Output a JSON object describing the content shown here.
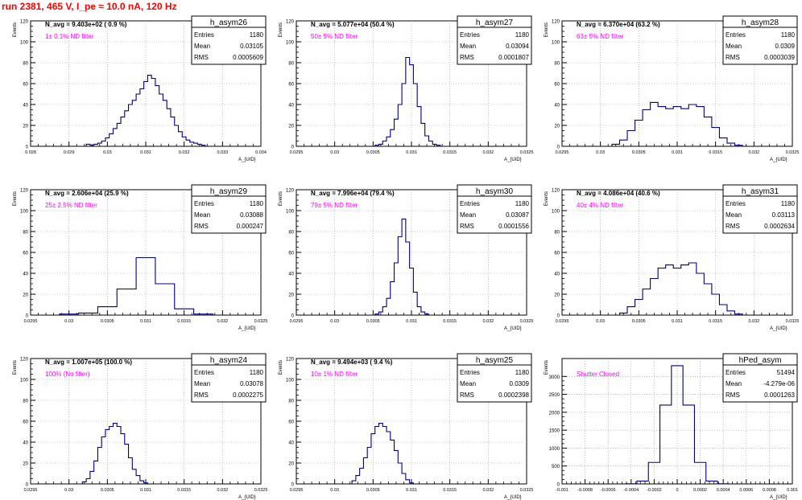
{
  "run_title": "run 2381,   465 V, I_pe ≈ 10.0 nA, 120 Hz",
  "stat_labels": {
    "entries": "Entries",
    "mean": "Mean",
    "rms": "RMS"
  },
  "colors": {
    "title": "#ff0000",
    "filter": "#ff00ff",
    "histogram": "#000080",
    "frame": "#000000",
    "grid": "#999999"
  },
  "chart_data": [
    {
      "type": "histogram",
      "name": "h_asym26",
      "ylabel": "Events",
      "xlabel": "A_{UID}",
      "xlim": [
        0.028,
        0.034
      ],
      "ylim": [
        0,
        120
      ],
      "yticks": [
        0,
        20,
        40,
        60,
        80,
        100,
        120
      ],
      "xticks": [
        0.028,
        0.029,
        0.03,
        0.031,
        0.032,
        0.033,
        0.034
      ],
      "xtick_labels": [
        "0.028",
        "0.029",
        "0.03",
        "0.031",
        "0.032",
        "0.033",
        "0.034"
      ],
      "stats": {
        "entries": "1180",
        "mean": "0.03105",
        "rms": "0.0005609"
      },
      "navg": "N_avg = 9.403e+02 ( 0.9 %)",
      "filter": "1± 0.1% ND filter",
      "grid": true,
      "bins": [
        [
          0.0295,
          2
        ],
        [
          0.0296,
          1
        ],
        [
          0.0297,
          2
        ],
        [
          0.0298,
          3
        ],
        [
          0.0299,
          5
        ],
        [
          0.03,
          8
        ],
        [
          0.0301,
          12
        ],
        [
          0.0302,
          17
        ],
        [
          0.0303,
          22
        ],
        [
          0.0304,
          28
        ],
        [
          0.0305,
          34
        ],
        [
          0.0306,
          40
        ],
        [
          0.0307,
          44
        ],
        [
          0.0308,
          50
        ],
        [
          0.0309,
          55
        ],
        [
          0.031,
          62
        ],
        [
          0.0311,
          68
        ],
        [
          0.0312,
          65
        ],
        [
          0.0313,
          58
        ],
        [
          0.0314,
          50
        ],
        [
          0.0315,
          44
        ],
        [
          0.0316,
          36
        ],
        [
          0.0317,
          28
        ],
        [
          0.0318,
          20
        ],
        [
          0.0319,
          14
        ],
        [
          0.032,
          9
        ],
        [
          0.0321,
          6
        ],
        [
          0.0322,
          4
        ],
        [
          0.0323,
          3
        ],
        [
          0.0324,
          2
        ],
        [
          0.0325,
          1
        ]
      ]
    },
    {
      "type": "histogram",
      "name": "h_asym27",
      "ylabel": "Events",
      "xlabel": "A_{UID}",
      "xlim": [
        0.0295,
        0.0325
      ],
      "ylim": [
        0,
        120
      ],
      "yticks": [
        0,
        20,
        40,
        60,
        80,
        100,
        120
      ],
      "xticks": [
        0.0295,
        0.03,
        0.0305,
        0.031,
        0.0315,
        0.032,
        0.0325
      ],
      "xtick_labels": [
        "0.0295",
        "0.03",
        "0.0305",
        "0.031",
        "0.0315",
        "0.032",
        "0.0325"
      ],
      "stats": {
        "entries": "1180",
        "mean": "0.03094",
        "rms": "0.0001807"
      },
      "navg": "N_avg = 5.077e+04 (50.4 %)",
      "filter": "50± 5% ND filter",
      "grid": true,
      "bins": [
        [
          0.03055,
          1
        ],
        [
          0.0306,
          2
        ],
        [
          0.03065,
          5
        ],
        [
          0.0307,
          9
        ],
        [
          0.03075,
          16
        ],
        [
          0.0308,
          26
        ],
        [
          0.03085,
          40
        ],
        [
          0.0309,
          60
        ],
        [
          0.03095,
          85
        ],
        [
          0.031,
          78
        ],
        [
          0.03105,
          60
        ],
        [
          0.0311,
          38
        ],
        [
          0.03115,
          22
        ],
        [
          0.0312,
          10
        ],
        [
          0.03125,
          5
        ],
        [
          0.0313,
          2
        ],
        [
          0.03135,
          1
        ]
      ]
    },
    {
      "type": "histogram",
      "name": "h_asym28",
      "ylabel": "Events",
      "xlabel": "A_{UID}",
      "xlim": [
        0.0295,
        0.0325
      ],
      "ylim": [
        0,
        120
      ],
      "yticks": [
        0,
        20,
        40,
        60,
        80,
        100,
        120
      ],
      "xticks": [
        0.0295,
        0.03,
        0.0305,
        0.031,
        0.0315,
        0.032,
        0.0325
      ],
      "xtick_labels": [
        "0.0295",
        "0.03",
        "0.0305",
        "0.031",
        "0.0315",
        "0.032",
        "0.0325"
      ],
      "stats": {
        "entries": "1180",
        "mean": "0.0309",
        "rms": "0.0003039"
      },
      "navg": "N_avg = 6.370e+04 (63.2 %)",
      "filter": "63± 5% ND filter",
      "grid": true,
      "bins": [
        [
          0.0302,
          2
        ],
        [
          0.0303,
          6
        ],
        [
          0.0304,
          15
        ],
        [
          0.0305,
          25
        ],
        [
          0.0306,
          35
        ],
        [
          0.0307,
          42
        ],
        [
          0.0308,
          38
        ],
        [
          0.0309,
          36
        ],
        [
          0.031,
          38
        ],
        [
          0.0311,
          36
        ],
        [
          0.0312,
          40
        ],
        [
          0.0313,
          38
        ],
        [
          0.0314,
          28
        ],
        [
          0.0315,
          18
        ],
        [
          0.0316,
          8
        ],
        [
          0.0317,
          3
        ],
        [
          0.0318,
          1
        ]
      ]
    },
    {
      "type": "histogram",
      "name": "h_asym29",
      "ylabel": "Events",
      "xlabel": "A_{UID}",
      "xlim": [
        0.0295,
        0.0325
      ],
      "ylim": [
        0,
        120
      ],
      "yticks": [
        0,
        20,
        40,
        60,
        80,
        100,
        120
      ],
      "xticks": [
        0.0295,
        0.03,
        0.0305,
        0.031,
        0.0315,
        0.032,
        0.0325
      ],
      "xtick_labels": [
        "0.0295",
        "0.03",
        "0.0305",
        "0.031",
        "0.0315",
        "0.032",
        "0.0325"
      ],
      "stats": {
        "entries": "1180",
        "mean": "0.03088",
        "rms": "0.000247"
      },
      "navg": "N_avg = 2.606e+04 (25.9 %)",
      "filter": "25± 2.5% ND filter",
      "grid": true,
      "bins": [
        [
          0.03,
          1
        ],
        [
          0.03025,
          2
        ],
        [
          0.0305,
          8
        ],
        [
          0.03075,
          25
        ],
        [
          0.031,
          55
        ],
        [
          0.03125,
          30
        ],
        [
          0.0315,
          6
        ],
        [
          0.03175,
          1
        ]
      ]
    },
    {
      "type": "histogram",
      "name": "h_asym30",
      "ylabel": "Events",
      "xlabel": "A_{UID}",
      "xlim": [
        0.0295,
        0.0325
      ],
      "ylim": [
        0,
        120
      ],
      "yticks": [
        0,
        20,
        40,
        60,
        80,
        100,
        120
      ],
      "xticks": [
        0.0295,
        0.03,
        0.0305,
        0.031,
        0.0315,
        0.032,
        0.0325
      ],
      "xtick_labels": [
        "0.0295",
        "0.03",
        "0.0305",
        "0.031",
        "0.0315",
        "0.032",
        "0.0325"
      ],
      "stats": {
        "entries": "1180",
        "mean": "0.03087",
        "rms": "0.0001556"
      },
      "navg": "N_avg = 7.996e+04 (79.4 %)",
      "filter": "79± 5% ND filter",
      "grid": true,
      "bins": [
        [
          0.03055,
          1
        ],
        [
          0.0306,
          3
        ],
        [
          0.03065,
          8
        ],
        [
          0.0307,
          16
        ],
        [
          0.03075,
          32
        ],
        [
          0.0308,
          50
        ],
        [
          0.03085,
          75
        ],
        [
          0.0309,
          92
        ],
        [
          0.03095,
          70
        ],
        [
          0.031,
          45
        ],
        [
          0.03105,
          22
        ],
        [
          0.0311,
          8
        ],
        [
          0.03115,
          3
        ],
        [
          0.0312,
          1
        ]
      ]
    },
    {
      "type": "histogram",
      "name": "h_asym31",
      "ylabel": "Events",
      "xlabel": "A_{UID}",
      "xlim": [
        0.0295,
        0.0325
      ],
      "ylim": [
        0,
        120
      ],
      "yticks": [
        0,
        20,
        40,
        60,
        80,
        100,
        120
      ],
      "xticks": [
        0.0295,
        0.03,
        0.0305,
        0.031,
        0.0315,
        0.032,
        0.0325
      ],
      "xtick_labels": [
        "0.0295",
        "0.03",
        "0.0305",
        "0.031",
        "0.0315",
        "0.032",
        "0.0325"
      ],
      "stats": {
        "entries": "1180",
        "mean": "0.03113",
        "rms": "0.0002634"
      },
      "navg": "N_avg = 4.086e+04 (40.6 %)",
      "filter": "40± 4% ND filter",
      "grid": true,
      "bins": [
        [
          0.0303,
          2
        ],
        [
          0.0304,
          8
        ],
        [
          0.0305,
          15
        ],
        [
          0.0306,
          25
        ],
        [
          0.0307,
          35
        ],
        [
          0.0308,
          45
        ],
        [
          0.0309,
          48
        ],
        [
          0.031,
          45
        ],
        [
          0.0311,
          48
        ],
        [
          0.0312,
          50
        ],
        [
          0.0313,
          40
        ],
        [
          0.0314,
          30
        ],
        [
          0.0315,
          20
        ],
        [
          0.0316,
          10
        ],
        [
          0.0317,
          4
        ],
        [
          0.0318,
          1
        ]
      ]
    },
    {
      "type": "histogram",
      "name": "h_asym24",
      "ylabel": "Events",
      "xlabel": "A_{UID}",
      "xlim": [
        0.0295,
        0.0325
      ],
      "ylim": [
        0,
        120
      ],
      "yticks": [
        0,
        20,
        40,
        60,
        80,
        100,
        120
      ],
      "xticks": [
        0.0295,
        0.03,
        0.0305,
        0.031,
        0.0315,
        0.032,
        0.0325
      ],
      "xtick_labels": [
        "0.0295",
        "0.03",
        "0.0305",
        "0.031",
        "0.0315",
        "0.032",
        "0.0325"
      ],
      "stats": {
        "entries": "1180",
        "mean": "0.03078",
        "rms": "0.0002275"
      },
      "navg": "N_avg = 1.007e+05 (100.0 %)",
      "filter": "100% (No filter)",
      "grid": true,
      "bins": [
        [
          0.0302,
          2
        ],
        [
          0.03025,
          5
        ],
        [
          0.0303,
          12
        ],
        [
          0.03035,
          22
        ],
        [
          0.0304,
          35
        ],
        [
          0.03045,
          45
        ],
        [
          0.0305,
          52
        ],
        [
          0.03055,
          55
        ],
        [
          0.0306,
          58
        ],
        [
          0.03065,
          55
        ],
        [
          0.0307,
          48
        ],
        [
          0.03075,
          38
        ],
        [
          0.0308,
          25
        ],
        [
          0.03085,
          14
        ],
        [
          0.0309,
          8
        ],
        [
          0.03095,
          3
        ],
        [
          0.031,
          1
        ]
      ]
    },
    {
      "type": "histogram",
      "name": "h_asym25",
      "ylabel": "Events",
      "xlabel": "A_{UID}",
      "xlim": [
        0.0295,
        0.0325
      ],
      "ylim": [
        0,
        120
      ],
      "yticks": [
        0,
        20,
        40,
        60,
        80,
        100,
        120
      ],
      "xticks": [
        0.0295,
        0.03,
        0.0305,
        0.031,
        0.0315,
        0.032,
        0.0325
      ],
      "xtick_labels": [
        "0.0295",
        "0.03",
        "0.0305",
        "0.031",
        "0.0315",
        "0.032",
        "0.0325"
      ],
      "stats": {
        "entries": "1180",
        "mean": "0.0309",
        "rms": "0.0002398"
      },
      "navg": "N_avg = 9.494e+03 ( 9.4 %)",
      "filter": "10± 1% ND filter",
      "grid": true,
      "bins": [
        [
          0.03025,
          3
        ],
        [
          0.0303,
          8
        ],
        [
          0.03035,
          15
        ],
        [
          0.0304,
          25
        ],
        [
          0.03045,
          35
        ],
        [
          0.0305,
          48
        ],
        [
          0.03055,
          55
        ],
        [
          0.0306,
          58
        ],
        [
          0.03065,
          55
        ],
        [
          0.0307,
          50
        ],
        [
          0.03075,
          42
        ],
        [
          0.0308,
          32
        ],
        [
          0.03085,
          20
        ],
        [
          0.0309,
          10
        ],
        [
          0.03095,
          4
        ],
        [
          0.031,
          1
        ]
      ]
    },
    {
      "type": "histogram",
      "name": "hPed_asym",
      "ylabel": "Events",
      "xlabel": "A_{UID}",
      "xlim": [
        -0.001,
        0.001
      ],
      "ylim": [
        0,
        3500
      ],
      "yticks": [
        0,
        500,
        1000,
        1500,
        2000,
        2500,
        3000
      ],
      "xticks": [
        -0.001,
        -0.0008,
        -0.0006,
        -0.0004,
        -0.0002,
        0,
        0.0002,
        0.0004,
        0.0006,
        0.0008,
        0.001
      ],
      "xtick_labels": [
        "-0.001",
        "-0.0008",
        "-0.0006",
        "-0.0004",
        "-0.0002",
        "0",
        "0.0002",
        "0.0004",
        "0.0006",
        "0.0008",
        "0.001"
      ],
      "stats": {
        "entries": "51494",
        "mean": "-4.279e-06",
        "rms": "0.0001263"
      },
      "navg": "",
      "filter": "Shutter Closed",
      "grid": true,
      "bins": [
        [
          -0.0004,
          5
        ],
        [
          -0.0003,
          80
        ],
        [
          -0.0002,
          600
        ],
        [
          -0.0001,
          2200
        ],
        [
          0,
          3300
        ],
        [
          0.0001,
          2200
        ],
        [
          0.0002,
          600
        ],
        [
          0.0003,
          80
        ],
        [
          0.0004,
          5
        ]
      ]
    }
  ]
}
